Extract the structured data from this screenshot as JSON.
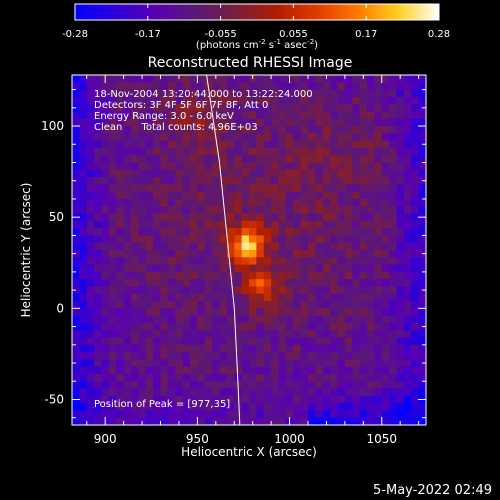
{
  "colorbar": {
    "ticks": [
      "-0.28",
      "-0.17",
      "-0.055",
      "0.055",
      "0.17",
      "0.28"
    ],
    "units_prefix": "(photons cm",
    "units_exp1": "-2",
    "units_mid": " s",
    "units_exp2": "-1",
    "units_mid2": " asec",
    "units_exp3": "-2",
    "units_suffix": ")",
    "colors": [
      "#0000ff",
      "#2d00d8",
      "#5a00b0",
      "#5a1878",
      "#7a1e3c",
      "#b01e00",
      "#e03c00",
      "#ff7a00",
      "#ffd020",
      "#ffffff"
    ]
  },
  "chart_data": {
    "type": "heatmap",
    "title": "Reconstructed RHESSI Image",
    "xlabel": "Heliocentric X (arcsec)",
    "ylabel": "Heliocentric Y (arcsec)",
    "xlim": [
      882,
      1074
    ],
    "ylim": [
      -64,
      128
    ],
    "x_ticks": [
      900,
      950,
      1000,
      1050
    ],
    "y_ticks": [
      -50,
      0,
      50,
      100
    ],
    "color_range": [
      -0.28,
      0.28
    ],
    "peak": [
      977,
      35
    ],
    "secondary_peak": [
      985,
      12
    ],
    "limb_x_at_y": [
      [
        955,
        128
      ],
      [
        962,
        80
      ],
      [
        966,
        40
      ],
      [
        970,
        0
      ],
      [
        972,
        -40
      ],
      [
        973,
        -64
      ]
    ],
    "info_lines": [
      "18-Nov-2004 13:20:44.000 to 13:22:24.000",
      "Detectors: 3F 4F 5F 6F 7F 8F, Att 0",
      "Energy Range: 3.0 - 6.0 keV",
      "Clean      Total counts: 4.96E+03"
    ],
    "peak_label": "Position of Peak = [977,35]"
  },
  "footer": {
    "timestamp": "5-May-2022 02:49"
  }
}
